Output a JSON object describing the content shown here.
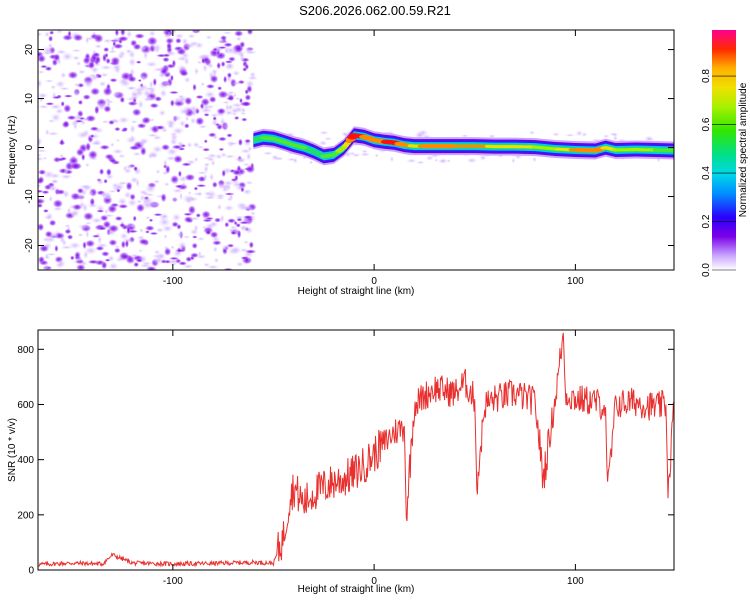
{
  "title": "S206.2026.062.00.59.R21",
  "chart_data": [
    {
      "type": "heatmap",
      "name": "spectrogram",
      "xlabel": "Height of straight line (km)",
      "ylabel": "Frequency (Hz)",
      "xlim": [
        -167,
        149
      ],
      "ylim": [
        -25,
        24
      ],
      "xticks": [
        -100,
        0,
        100
      ],
      "yticks": [
        -20,
        -10,
        0,
        10,
        20
      ],
      "noise_region_x": [
        -167,
        -60
      ],
      "ridge": {
        "x": [
          -60,
          -55,
          -50,
          -45,
          -40,
          -35,
          -30,
          -25,
          -20,
          -15,
          -10,
          -5,
          0,
          5,
          10,
          15,
          20,
          30,
          40,
          50,
          60,
          70,
          80,
          90,
          100,
          110,
          115,
          120,
          130,
          140,
          149
        ],
        "freq": [
          1.5,
          2.0,
          1.8,
          1.2,
          0.5,
          0.0,
          -0.8,
          -1.8,
          -1.5,
          0.0,
          2.5,
          2.2,
          1.5,
          1.2,
          1.0,
          0.5,
          0.3,
          0.3,
          0.3,
          0.3,
          0.2,
          0.2,
          0.1,
          -0.3,
          -0.5,
          -0.6,
          0.0,
          -0.5,
          -0.4,
          -0.5,
          -0.6
        ],
        "amplitude": [
          0.35,
          0.5,
          0.55,
          0.6,
          0.55,
          0.5,
          0.45,
          0.5,
          0.55,
          0.7,
          0.95,
          0.9,
          0.85,
          0.9,
          0.95,
          0.85,
          0.8,
          0.9,
          0.85,
          0.85,
          0.8,
          0.75,
          0.7,
          0.7,
          0.85,
          0.9,
          0.8,
          0.7,
          0.65,
          0.6,
          0.55
        ]
      },
      "colorbar": {
        "label": "Normalized spectral amplitude",
        "range": [
          0.0,
          0.99
        ],
        "ticks": [
          "0.0",
          "0.2",
          "0.4",
          "0.6",
          "0.8"
        ],
        "tick_values": [
          0.0,
          0.2,
          0.4,
          0.6,
          0.8
        ],
        "colors": [
          "#ffffff",
          "#c9a6ff",
          "#7a00e6",
          "#2a00ff",
          "#00c8ff",
          "#00e08a",
          "#32e600",
          "#d7f000",
          "#ffb000",
          "#ff2a00",
          "#ff0090"
        ]
      }
    },
    {
      "type": "line",
      "name": "snr",
      "xlabel": "Height of straight line (km)",
      "ylabel": "SNR (10 * v/v)",
      "xlim": [
        -167,
        149
      ],
      "ylim": [
        0,
        870
      ],
      "xticks": [
        -100,
        0,
        100
      ],
      "yticks": [
        0,
        200,
        400,
        600,
        800
      ],
      "line_color": "#e8302e",
      "series": [
        {
          "name": "SNR",
          "x": [
            -167,
            -150,
            -135,
            -130,
            -120,
            -100,
            -80,
            -60,
            -50,
            -45,
            -42,
            -40,
            -35,
            -30,
            -25,
            -20,
            -15,
            -10,
            -5,
            0,
            5,
            10,
            15,
            16,
            20,
            25,
            30,
            40,
            45,
            50,
            51,
            55,
            60,
            70,
            80,
            84,
            90,
            94,
            95,
            100,
            110,
            115,
            116,
            120,
            130,
            140,
            145,
            146,
            149
          ],
          "y": [
            20,
            25,
            22,
            55,
            25,
            22,
            24,
            28,
            25,
            120,
            260,
            300,
            240,
            280,
            300,
            320,
            330,
            350,
            380,
            420,
            460,
            500,
            520,
            200,
            600,
            630,
            660,
            640,
            680,
            620,
            300,
            600,
            620,
            640,
            610,
            330,
            620,
            860,
            640,
            620,
            610,
            590,
            270,
            600,
            610,
            590,
            600,
            280,
            610
          ]
        }
      ]
    }
  ]
}
